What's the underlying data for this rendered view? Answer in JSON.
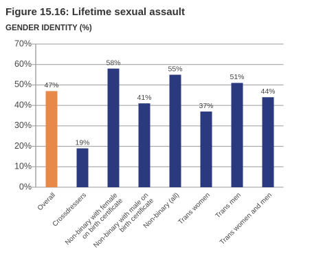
{
  "chart_data": {
    "type": "bar",
    "title": "Figure 15.16: Lifetime sexual assault",
    "subtitle": "GENDER IDENTITY (%)",
    "categories": [
      "Overall",
      "Crossdressers",
      "Non-binary with female\non birth certificate",
      "Non-binary with male on\nbirth certificate",
      "Non-binary (all)",
      "Trans women",
      "Trans men",
      "Trans women and men"
    ],
    "values": [
      47,
      19,
      58,
      41,
      55,
      37,
      51,
      44
    ],
    "value_labels": [
      "47%",
      "19%",
      "58%",
      "41%",
      "55%",
      "37%",
      "51%",
      "44%"
    ],
    "colors": [
      "#e8894a",
      "#2b3a7e",
      "#2b3a7e",
      "#2b3a7e",
      "#2b3a7e",
      "#2b3a7e",
      "#2b3a7e",
      "#2b3a7e"
    ],
    "ylim": [
      0,
      70
    ],
    "yticks": [
      {
        "value": 0,
        "label": "0%"
      },
      {
        "value": 10,
        "label": "10%"
      },
      {
        "value": 20,
        "label": "20%"
      },
      {
        "value": 30,
        "label": "30%"
      },
      {
        "value": 40,
        "label": "40%"
      },
      {
        "value": 50,
        "label": "50%"
      },
      {
        "value": 60,
        "label": "60%"
      },
      {
        "value": 70,
        "label": "70%"
      }
    ],
    "grid": true
  }
}
